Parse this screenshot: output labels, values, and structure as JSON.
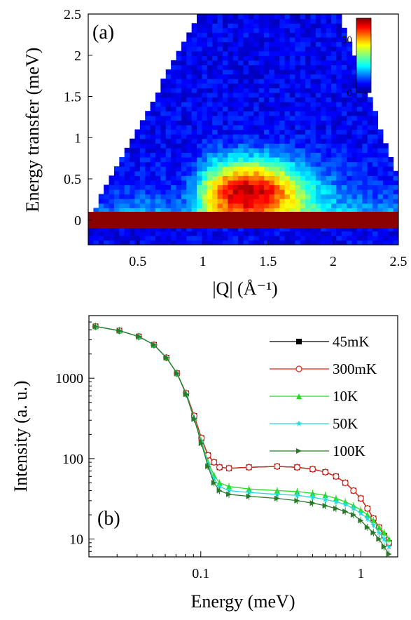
{
  "chart_data": [
    {
      "type": "heatmap",
      "panel_label": "(a)",
      "xlabel": "|Q| (Å⁻¹)",
      "ylabel": "Energy transfer (meV)",
      "xlim": [
        0.12,
        2.5
      ],
      "ylim": [
        -0.3,
        2.5
      ],
      "x_ticks": [
        0.5,
        1,
        1.5,
        2,
        2.5
      ],
      "x_tick_labels": [
        "0.5",
        "1",
        "1.5",
        "2",
        "2.5"
      ],
      "y_ticks": [
        0,
        0.5,
        1,
        1.5,
        2,
        2.5
      ],
      "y_tick_labels": [
        "0",
        "0.5",
        "1",
        "1.5",
        "2",
        "2.5"
      ],
      "colorbar": {
        "range": [
          0,
          70
        ],
        "ticks": [
          0,
          50
        ],
        "tick_labels": [
          "0",
          "50"
        ],
        "colormap": "jet",
        "placement": "top-right"
      },
      "features": {
        "elastic_line_energy_range": [
          -0.1,
          0.1
        ],
        "elastic_intensity": 70,
        "inelastic_peak_Q": 1.35,
        "inelastic_peak_energy": 0.35,
        "inelastic_peak_intensity": 62,
        "inelastic_onset_Q": 0.95,
        "background_intensity": 8
      }
    },
    {
      "type": "line",
      "panel_label": "(b)",
      "xlabel": "Energy (meV)",
      "ylabel": "Intensity (a. u.)",
      "xscale": "log",
      "yscale": "log",
      "xlim": [
        0.02,
        1.7
      ],
      "ylim": [
        6,
        6000
      ],
      "x_ticks": [
        0.1,
        1
      ],
      "x_tick_labels": [
        "0.1",
        "1"
      ],
      "y_ticks": [
        10,
        100,
        1000
      ],
      "y_tick_labels": [
        "10",
        "100",
        "1000"
      ],
      "legend_placement": "top-right",
      "x": [
        0.022,
        0.031,
        0.041,
        0.051,
        0.061,
        0.071,
        0.081,
        0.091,
        0.101,
        0.111,
        0.121,
        0.131,
        0.15,
        0.2,
        0.3,
        0.4,
        0.5,
        0.6,
        0.7,
        0.8,
        0.9,
        1.0,
        1.1,
        1.2,
        1.3,
        1.4,
        1.5
      ],
      "series": [
        {
          "name": "45mK",
          "color": "#000000",
          "marker": "square",
          "values": [
            4400,
            3900,
            3300,
            2600,
            1800,
            1150,
            650,
            340,
            180,
            110,
            90,
            78,
            76,
            78,
            80,
            78,
            74,
            68,
            60,
            50,
            40,
            32,
            24,
            18,
            14,
            11,
            9
          ]
        },
        {
          "name": "300mK",
          "color": "#e2231a",
          "marker": "circle",
          "values": [
            4400,
            3900,
            3300,
            2600,
            1800,
            1150,
            650,
            340,
            180,
            110,
            90,
            78,
            76,
            78,
            80,
            78,
            74,
            68,
            60,
            50,
            40,
            32,
            24,
            18,
            14,
            11,
            9
          ]
        },
        {
          "name": "10K",
          "color": "#22dd22",
          "marker": "triangle",
          "values": [
            4400,
            3900,
            3300,
            2600,
            1800,
            1150,
            640,
            320,
            165,
            90,
            62,
            50,
            45,
            42,
            40,
            39,
            37,
            35,
            32,
            29,
            26,
            23,
            20,
            17,
            14,
            12,
            10
          ]
        },
        {
          "name": "50K",
          "color": "#22dddd",
          "marker": "star",
          "values": [
            4400,
            3900,
            3300,
            2600,
            1800,
            1150,
            635,
            315,
            160,
            85,
            56,
            45,
            40,
            38,
            36,
            35,
            33,
            31,
            29,
            27,
            24,
            21,
            18,
            15,
            12,
            10,
            8
          ]
        },
        {
          "name": "100K",
          "color": "#2a7a2a",
          "marker": "right-triangle",
          "values": [
            4400,
            3900,
            3300,
            2600,
            1800,
            1150,
            630,
            310,
            155,
            80,
            50,
            40,
            36,
            34,
            32,
            30,
            28,
            26,
            24,
            22,
            20,
            17,
            14,
            12,
            10,
            8,
            6.5
          ]
        }
      ]
    }
  ]
}
